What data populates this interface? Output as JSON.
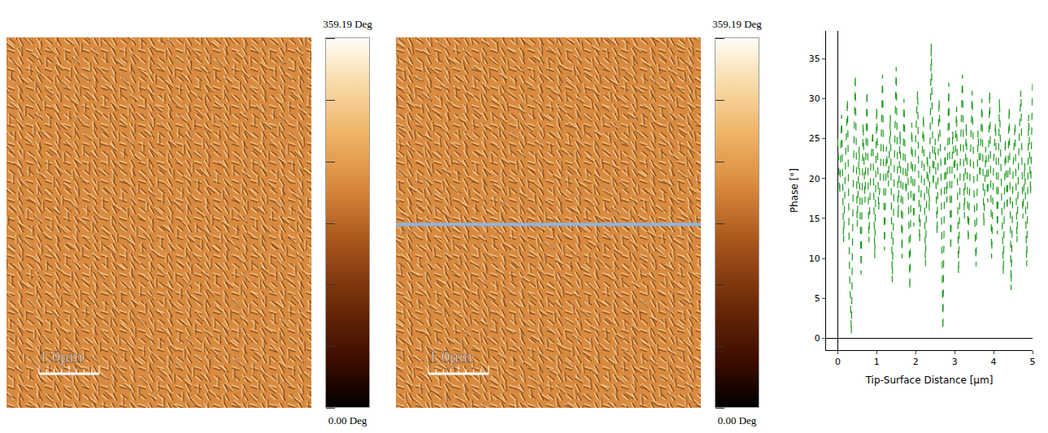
{
  "images": [
    {
      "type": "afm_phase_image",
      "scale_bar": "1.0μm",
      "profile_line": false,
      "colorbar": {
        "range": [
          0,
          359.19
        ],
        "ticks": [
          0,
          59.865,
          119.73,
          179.595,
          239.46,
          299.325,
          359.19
        ],
        "range_labels": [
          {
            "value": 0,
            "label": "0.00 Deg"
          },
          {
            "value": 359.19,
            "label": "359.19 Deg"
          }
        ]
      }
    },
    {
      "type": "afm_phase_image",
      "scale_bar": "1.0μm",
      "profile_line": true,
      "colorbar": {
        "range": [
          0,
          359.19
        ],
        "ticks": [
          0,
          59.865,
          119.73,
          179.595,
          239.46,
          299.325,
          359.19
        ],
        "range_labels": [
          {
            "value": 0,
            "label": "0.00 Deg"
          },
          {
            "value": 359.19,
            "label": "359.19 Deg"
          }
        ]
      }
    }
  ],
  "chart_data": {
    "type": "line",
    "x_label": "Tip-Surface Distance [µm]",
    "y_label": "Phase [°]",
    "color": "#1e9a1e",
    "line_style": "dash",
    "grid": false,
    "xlim": [
      -0.3,
      5
    ],
    "xticks": [
      0,
      1,
      2,
      3,
      4,
      5
    ],
    "ylim": [
      -1.5,
      38.5
    ],
    "yticks": [
      0,
      5,
      10,
      15,
      20,
      25,
      30,
      35
    ],
    "x": [
      0,
      0.05,
      0.1,
      0.15,
      0.2,
      0.25,
      0.3,
      0.35,
      0.4,
      0.45,
      0.5,
      0.55,
      0.6,
      0.65,
      0.7,
      0.75,
      0.8,
      0.85,
      0.9,
      0.95,
      1,
      1.05,
      1.1,
      1.15,
      1.2,
      1.25,
      1.3,
      1.35,
      1.4,
      1.45,
      1.5,
      1.55,
      1.6,
      1.65,
      1.7,
      1.75,
      1.8,
      1.85,
      1.9,
      1.95,
      2,
      2.05,
      2.1,
      2.15,
      2.2,
      2.25,
      2.3,
      2.35,
      2.4,
      2.45,
      2.5,
      2.55,
      2.6,
      2.65,
      2.7,
      2.75,
      2.8,
      2.85,
      2.9,
      2.95,
      3,
      3.05,
      3.1,
      3.15,
      3.2,
      3.25,
      3.3,
      3.35,
      3.4,
      3.45,
      3.5,
      3.55,
      3.6,
      3.65,
      3.7,
      3.75,
      3.8,
      3.85,
      3.9,
      3.95,
      4,
      4.05,
      4.1,
      4.15,
      4.2,
      4.25,
      4.3,
      4.35,
      4.4,
      4.45,
      4.5,
      4.55,
      4.6,
      4.65,
      4.7,
      4.75,
      4.8,
      4.85,
      4.9,
      4.95,
      5
    ],
    "values": [
      25,
      18,
      28,
      12,
      22,
      30,
      9,
      0.5,
      20,
      33,
      14,
      24,
      8,
      27,
      17,
      31,
      12,
      22,
      26,
      10,
      29,
      16,
      21,
      33,
      11,
      24,
      19,
      28,
      7,
      23,
      34,
      15,
      26,
      10,
      30,
      18,
      22,
      6,
      27,
      14,
      25,
      31,
      12,
      20,
      28,
      9,
      23,
      16,
      37,
      19,
      25,
      13,
      30,
      21,
      1,
      24,
      17,
      32,
      11,
      26,
      20,
      29,
      8,
      23,
      33,
      15,
      27,
      12,
      22,
      31,
      18,
      9,
      26,
      20,
      30,
      14,
      24,
      17,
      31,
      10,
      22,
      27,
      13,
      30,
      19,
      8,
      25,
      16,
      29,
      6,
      21,
      27,
      12,
      24,
      31,
      15,
      22,
      9,
      28,
      18,
      32
    ]
  }
}
